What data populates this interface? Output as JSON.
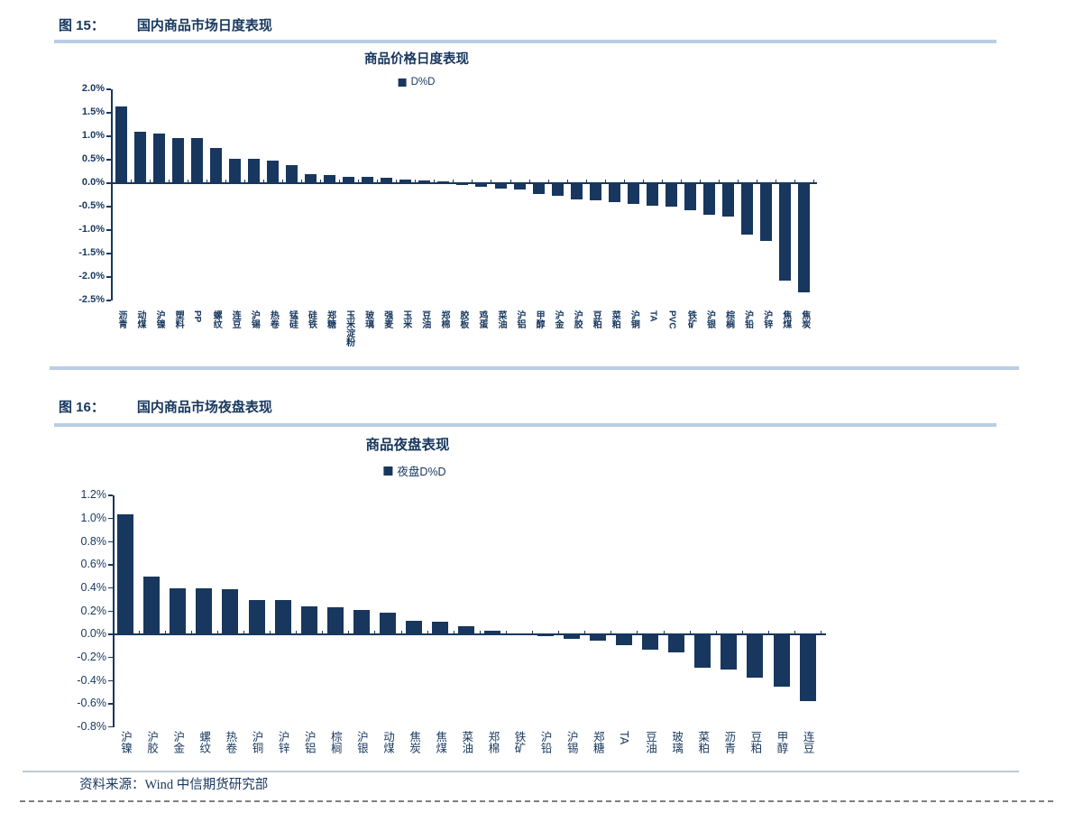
{
  "figures": [
    {
      "label": "图 15：",
      "title": "国内商品市场日度表现"
    },
    {
      "label": "图 16：",
      "title": "国内商品市场夜盘表现"
    }
  ],
  "source": "资料来源：Wind 中信期货研究部",
  "colors": {
    "navy": "#17375E",
    "rule_blue": "#B9CDE5"
  },
  "chart_data": [
    {
      "type": "bar",
      "title": "商品价格日度表现",
      "legend": [
        "D%D"
      ],
      "unit": "%",
      "ylim": [
        -2.5,
        2.0
      ],
      "ytick_step": 0.5,
      "grid": false,
      "legend_position": "top",
      "categories": [
        "沥青",
        "动煤",
        "沪镍",
        "塑料",
        "PP",
        "螺纹",
        "连豆",
        "沪锡",
        "热卷",
        "锰硅",
        "硅铁",
        "郑糖",
        "玉米淀粉",
        "玻璃",
        "强麦",
        "玉米",
        "豆油",
        "郑棉",
        "胶板",
        "鸡蛋",
        "菜油",
        "沪铝",
        "甲醇",
        "沪金",
        "沪胶",
        "豆粕",
        "菜粕",
        "沪铜",
        "TA",
        "PVC",
        "铁矿",
        "沪银",
        "棕榈",
        "沪铅",
        "沪锌",
        "焦煤",
        "焦炭"
      ],
      "values": [
        1.63,
        1.1,
        1.05,
        0.96,
        0.96,
        0.75,
        0.52,
        0.52,
        0.48,
        0.39,
        0.19,
        0.17,
        0.13,
        0.13,
        0.11,
        0.08,
        0.06,
        0.03,
        -0.03,
        -0.06,
        -0.11,
        -0.12,
        -0.21,
        -0.26,
        -0.34,
        -0.36,
        -0.38,
        -0.42,
        -0.46,
        -0.49,
        -0.57,
        -0.65,
        -0.69,
        -1.08,
        -1.22,
        -2.06,
        -2.31
      ]
    },
    {
      "type": "bar",
      "title": "商品夜盘表现",
      "legend": [
        "夜盘D%D"
      ],
      "unit": "%",
      "ylim": [
        -0.8,
        1.2
      ],
      "ytick_step": 0.2,
      "grid": false,
      "legend_position": "top",
      "categories": [
        "沪镍",
        "沪胶",
        "沪金",
        "螺纹",
        "热卷",
        "沪铜",
        "沪锌",
        "沪铝",
        "棕榈",
        "沪银",
        "动煤",
        "焦炭",
        "焦煤",
        "菜油",
        "郑棉",
        "铁矿",
        "沪铅",
        "沪锡",
        "郑糖",
        "TA",
        "豆油",
        "玻璃",
        "菜粕",
        "沥青",
        "豆粕",
        "甲醇",
        "连豆"
      ],
      "values": [
        1.04,
        0.5,
        0.4,
        0.4,
        0.39,
        0.3,
        0.3,
        0.24,
        0.23,
        0.21,
        0.19,
        0.12,
        0.11,
        0.07,
        0.03,
        0.0,
        -0.01,
        -0.03,
        -0.05,
        -0.09,
        -0.13,
        -0.15,
        -0.28,
        -0.3,
        -0.37,
        -0.45,
        -0.57
      ]
    }
  ]
}
